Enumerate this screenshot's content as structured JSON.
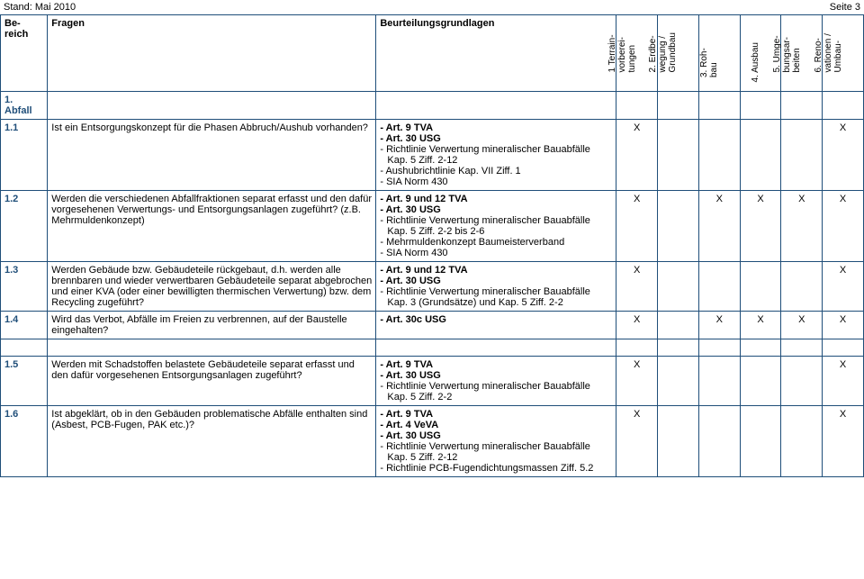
{
  "header": {
    "left": "Stand: Mai 2010",
    "right": "Seite 3"
  },
  "columns": {
    "bereich": "Be-\nreich",
    "fragen": "Fragen",
    "beurt": "Beurteilungsgrundlagen",
    "phases": [
      "1 Terrain-\nvorberei-\ntungen",
      "2. Erdbe-\nwegung /\nGrundbau",
      "3. Roh-\nbau",
      "4. Ausbau",
      "5. Umge-\nbungsar-\nbeiten",
      "6. Reno-\nvationen /\nUmbau-"
    ]
  },
  "section": {
    "num": "1.",
    "title": "Abfall"
  },
  "rows": [
    {
      "num": "1.1",
      "frage": "Ist ein Entsorgungskonzept für die Phasen Abbruch/Aushub vorhanden?",
      "basis": [
        {
          "b": true,
          "t": "- Art. 9 TVA"
        },
        {
          "b": true,
          "t": "- Art. 30 USG"
        },
        {
          "t": "- Richtlinie Verwertung mineralischer Bauabfälle Kap. 5 Ziff. 2-12"
        },
        {
          "t": "- Aushubrichtlinie Kap. VII Ziff. 1"
        },
        {
          "t": "- SIA Norm 430"
        }
      ],
      "x": [
        "X",
        "",
        "",
        "",
        "",
        "X"
      ]
    },
    {
      "num": "1.2",
      "frage": "Werden die verschiedenen Abfallfraktionen separat erfasst und den dafür vorgesehenen Verwertungs- und Entsorgungsanlagen zugeführt? (z.B. Mehrmuldenkonzept)",
      "basis": [
        {
          "b": true,
          "t": "- Art. 9 und 12 TVA"
        },
        {
          "b": true,
          "t": "- Art. 30 USG"
        },
        {
          "t": "- Richtlinie Verwertung mineralischer Bauabfälle Kap. 5 Ziff. 2-2 bis 2-6"
        },
        {
          "t": "- Mehrmuldenkonzept Baumeisterverband"
        },
        {
          "t": "- SIA Norm 430"
        }
      ],
      "x": [
        "X",
        "",
        "X",
        "X",
        "X",
        "X"
      ]
    },
    {
      "num": "1.3",
      "frage": "Werden Gebäude bzw. Gebäudeteile rückgebaut, d.h. werden alle brennbaren und wieder verwertbaren Gebäudeteile separat abgebrochen und einer KVA (oder einer bewilligten thermischen Verwertung) bzw. dem Recycling zugeführt?",
      "basis": [
        {
          "b": true,
          "t": "- Art. 9 und 12 TVA"
        },
        {
          "b": true,
          "t": "- Art. 30 USG"
        },
        {
          "t": "- Richtlinie Verwertung mineralischer Bauabfälle Kap. 3 (Grundsätze) und Kap. 5 Ziff. 2-2"
        }
      ],
      "x": [
        "X",
        "",
        "",
        "",
        "",
        "X"
      ]
    },
    {
      "num": "1.4",
      "frage": "Wird das Verbot, Abfälle im Freien zu verbrennen, auf der Baustelle eingehalten?",
      "basis": [
        {
          "b": true,
          "t": "- Art. 30c USG"
        }
      ],
      "x": [
        "X",
        "",
        "X",
        "X",
        "X",
        "X"
      ]
    },
    {
      "num": "1.5",
      "frage": "Werden mit Schadstoffen belastete Gebäudeteile separat erfasst und den dafür vorgesehenen Entsorgungsanlagen zugeführt?",
      "basis": [
        {
          "b": true,
          "t": "- Art. 9 TVA"
        },
        {
          "b": true,
          "t": "- Art. 30 USG"
        },
        {
          "t": "- Richtlinie Verwertung mineralischer Bauabfälle Kap. 5 Ziff. 2-2"
        }
      ],
      "x": [
        "X",
        "",
        "",
        "",
        "",
        "X"
      ],
      "gap": true
    },
    {
      "num": "1.6",
      "frage": "Ist abgeklärt, ob in den Gebäuden problematische Abfälle enthalten sind (Asbest, PCB-Fugen, PAK etc.)?",
      "basis": [
        {
          "b": true,
          "t": "- Art. 9 TVA"
        },
        {
          "b": true,
          "t": "- Art. 4 VeVA"
        },
        {
          "b": true,
          "t": "- Art. 30 USG"
        },
        {
          "t": "- Richtlinie Verwertung mineralischer Bauabfälle Kap. 5 Ziff. 2-12"
        },
        {
          "t": "- Richtlinie PCB-Fugendichtungsmassen Ziff. 5.2"
        }
      ],
      "x": [
        "X",
        "",
        "",
        "",
        "",
        "X"
      ]
    }
  ]
}
